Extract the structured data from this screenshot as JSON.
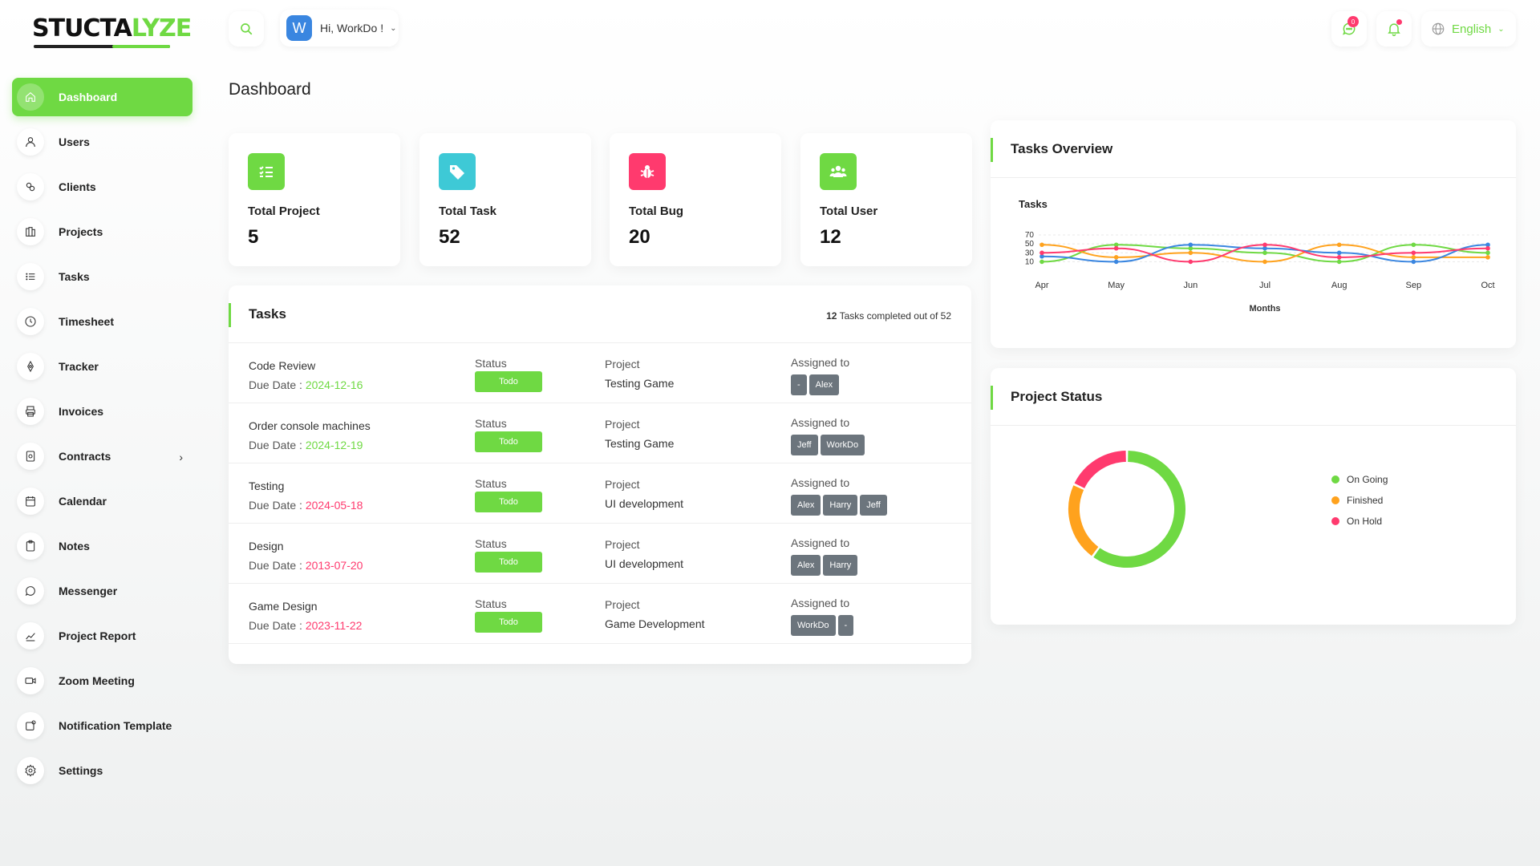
{
  "app": {
    "logo_main": "STUCTA",
    "logo_accent": "LYZE"
  },
  "sidebar": {
    "items": [
      {
        "label": "Dashboard",
        "icon": "home-icon",
        "active": true
      },
      {
        "label": "Users",
        "icon": "user-icon"
      },
      {
        "label": "Clients",
        "icon": "clients-icon"
      },
      {
        "label": "Projects",
        "icon": "projects-icon"
      },
      {
        "label": "Tasks",
        "icon": "list-icon"
      },
      {
        "label": "Timesheet",
        "icon": "clock-icon"
      },
      {
        "label": "Tracker",
        "icon": "tracker-icon"
      },
      {
        "label": "Invoices",
        "icon": "printer-icon"
      },
      {
        "label": "Contracts",
        "icon": "contract-icon",
        "has_children": true
      },
      {
        "label": "Calendar",
        "icon": "calendar-icon"
      },
      {
        "label": "Notes",
        "icon": "clipboard-icon"
      },
      {
        "label": "Messenger",
        "icon": "message-icon"
      },
      {
        "label": "Project Report",
        "icon": "report-icon"
      },
      {
        "label": "Zoom Meeting",
        "icon": "video-icon"
      },
      {
        "label": "Notification Template",
        "icon": "notification-template-icon"
      },
      {
        "label": "Settings",
        "icon": "gear-icon"
      }
    ]
  },
  "header": {
    "avatar_initial": "W",
    "user_greeting": "Hi, WorkDo !",
    "message_count": "0",
    "language": "English"
  },
  "page": {
    "title": "Dashboard"
  },
  "stats": [
    {
      "label": "Total Project",
      "value": "5",
      "color": "#6fd943",
      "icon": "checklist-icon"
    },
    {
      "label": "Total Task",
      "value": "52",
      "color": "#3ec9d6",
      "icon": "tag-icon"
    },
    {
      "label": "Total Bug",
      "value": "20",
      "color": "#ff3a6e",
      "icon": "bug-icon"
    },
    {
      "label": "Total User",
      "value": "12",
      "color": "#6fd943",
      "icon": "users-icon"
    }
  ],
  "tasks": {
    "title": "Tasks",
    "completed": "12",
    "summary_suffix": "Tasks completed out of 52",
    "status_label": "Status",
    "project_label": "Project",
    "assigned_label": "Assigned to",
    "due_prefix": "Due Date : ",
    "rows": [
      {
        "name": "Code Review",
        "due": "2024-12-16",
        "due_color": "green",
        "status": "Todo",
        "project": "Testing Game",
        "assignees": [
          "-",
          "Alex"
        ]
      },
      {
        "name": "Order console machines",
        "due": "2024-12-19",
        "due_color": "green",
        "status": "Todo",
        "project": "Testing Game",
        "assignees": [
          "Jeff",
          "WorkDo"
        ]
      },
      {
        "name": "Testing",
        "due": "2024-05-18",
        "due_color": "red",
        "status": "Todo",
        "project": "UI development",
        "assignees": [
          "Alex",
          "Harry",
          "Jeff"
        ]
      },
      {
        "name": "Design",
        "due": "2013-07-20",
        "due_color": "red",
        "status": "Todo",
        "project": "UI development",
        "assignees": [
          "Alex",
          "Harry"
        ]
      },
      {
        "name": "Game Design",
        "due": "2023-11-22",
        "due_color": "red",
        "status": "Todo",
        "project": "Game Development",
        "assignees": [
          "WorkDo",
          "-"
        ]
      }
    ]
  },
  "overview": {
    "title": "Tasks Overview"
  },
  "project_status": {
    "title": "Project Status"
  },
  "chart_data": [
    {
      "type": "line",
      "title": "Tasks",
      "xlabel": "Months",
      "ylabel": "",
      "categories": [
        "Apr",
        "May",
        "Jun",
        "Jul",
        "Aug",
        "Sep",
        "Oct"
      ],
      "yticks": [
        10,
        30,
        50,
        70
      ],
      "ylim": [
        0,
        70
      ],
      "grid": true,
      "series": [
        {
          "color": "#6fd943",
          "values": [
            10,
            48,
            40,
            30,
            10,
            48,
            30
          ]
        },
        {
          "color": "#ffa21d",
          "values": [
            48,
            20,
            30,
            10,
            48,
            20,
            20
          ]
        },
        {
          "color": "#3a86e0",
          "values": [
            22,
            10,
            48,
            40,
            30,
            10,
            48
          ]
        },
        {
          "color": "#ff3a6e",
          "values": [
            30,
            40,
            10,
            48,
            20,
            30,
            40
          ]
        }
      ]
    },
    {
      "type": "pie",
      "donut": true,
      "legend": "right",
      "series": [
        {
          "name": "On Going",
          "value": 60,
          "color": "#6fd943"
        },
        {
          "name": "Finished",
          "value": 22,
          "color": "#ffa21d"
        },
        {
          "name": "On Hold",
          "value": 18,
          "color": "#ff3a6e"
        }
      ]
    }
  ]
}
